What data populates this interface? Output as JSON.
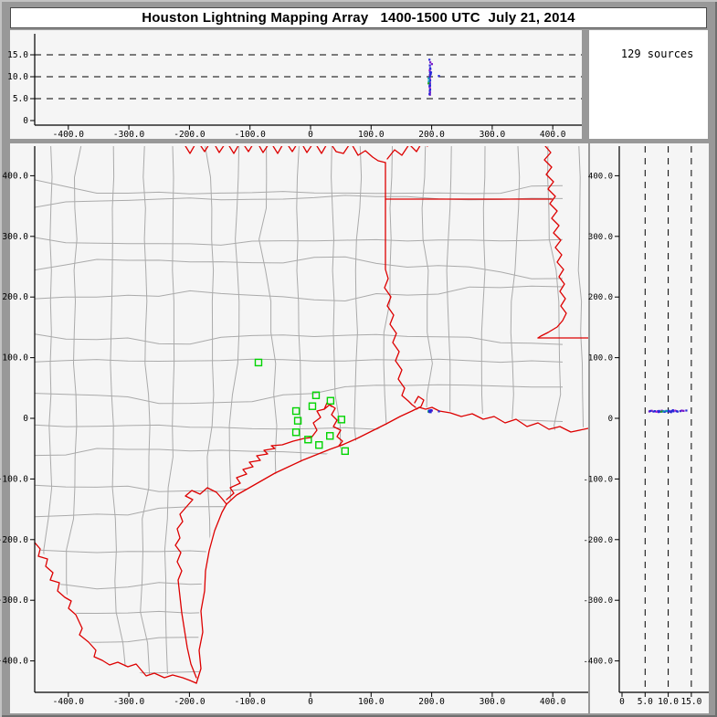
{
  "window": {
    "title": "Houston Lightning Mapping Array   1400-1500 UTC  July 21, 2014"
  },
  "sources_panel": {
    "label": "129 sources"
  },
  "colors": {
    "state_border_red": "#dd0000",
    "county_gray": "#aaaaaa",
    "station_green": "#00d400",
    "panel_bg": "#f5f5f5",
    "frame_gray": "#989898",
    "dash_black": "#000000"
  },
  "chart_data": {
    "type": "scatter",
    "title": "Houston Lightning Mapping Array   1400-1500 UTC  July 21, 2014",
    "sources_count": 129,
    "panels": [
      {
        "id": "alt_vs_eastwest",
        "position": "top",
        "x_axis": "east_km",
        "y_axis": "alt_km",
        "gridlines": "horizontal dashed at 5,10,15 km"
      },
      {
        "id": "plan_view_map",
        "position": "main",
        "x_axis": "east_km",
        "y_axis": "north_km",
        "gridlines": "none"
      },
      {
        "id": "northsouth_vs_alt",
        "position": "right",
        "x_axis": "alt_km",
        "y_axis": "north_km",
        "gridlines": "vertical dashed at 5,10,15 km"
      }
    ],
    "axes": {
      "east_km": {
        "ticks": [
          -400,
          -300,
          -200,
          -100,
          0,
          100,
          200,
          300,
          400
        ],
        "tick_labels": [
          "-400.0",
          "-300.0",
          "-200.0",
          "-100.0",
          "0",
          "100.0",
          "200.0",
          "300.0",
          "400.0"
        ],
        "range": [
          -455,
          459
        ]
      },
      "north_km": {
        "ticks": [
          400,
          300,
          200,
          100,
          0,
          -100,
          -200,
          -300,
          -400
        ],
        "tick_labels": [
          "400.0",
          "300.0",
          "200.0",
          "100.0",
          "0",
          "-100.0",
          "-200.0",
          "-300.0",
          "-400.0"
        ],
        "range": [
          448,
          -452
        ]
      },
      "alt_km": {
        "ticks": [
          0,
          5,
          10,
          15
        ],
        "tick_labels": [
          "0",
          "5.0",
          "10.0",
          "15.0"
        ],
        "range": [
          0,
          20
        ],
        "gridlines": [
          5,
          10,
          15
        ]
      }
    },
    "stations_east_north_km": [
      [
        -86,
        92
      ],
      [
        9,
        38
      ],
      [
        33,
        29
      ],
      [
        3,
        20
      ],
      [
        -24,
        12
      ],
      [
        -21,
        -4
      ],
      [
        51,
        -2
      ],
      [
        -24,
        -23
      ],
      [
        32,
        -29
      ],
      [
        -4,
        -35
      ],
      [
        14,
        -44
      ],
      [
        57,
        -54
      ]
    ],
    "sources_east_north_alt_color": [
      [
        197.6,
        12.4,
        13.3,
        "#7a18c8"
      ],
      [
        196.9,
        12.0,
        12.6,
        "#2828d8"
      ],
      [
        197.3,
        11.2,
        12.0,
        "#2828d8"
      ],
      [
        196.6,
        12.8,
        11.5,
        "#b81fc8"
      ],
      [
        197.1,
        11.6,
        11.1,
        "#2828d8"
      ],
      [
        197.5,
        12.2,
        10.7,
        "#2828d8"
      ],
      [
        196.8,
        11.0,
        10.4,
        "#7a18c8"
      ],
      [
        197.2,
        12.5,
        10.1,
        "#2828d8"
      ],
      [
        196.5,
        11.8,
        9.8,
        "#2828d8"
      ],
      [
        197.0,
        12.1,
        9.5,
        "#b81fc8"
      ],
      [
        197.4,
        10.8,
        9.2,
        "#2828d8"
      ],
      [
        196.7,
        11.4,
        8.9,
        "#2828d8"
      ],
      [
        197.1,
        12.7,
        8.6,
        "#7a18c8"
      ],
      [
        196.9,
        11.1,
        8.3,
        "#2828d8"
      ],
      [
        197.3,
        12.3,
        8.0,
        "#2828d8"
      ],
      [
        196.6,
        11.7,
        7.7,
        "#2828d8"
      ],
      [
        197.0,
        10.9,
        7.4,
        "#b81fc8"
      ],
      [
        197.4,
        12.0,
        7.1,
        "#2828d8"
      ],
      [
        196.8,
        11.3,
        6.8,
        "#2828d8"
      ],
      [
        197.2,
        12.6,
        6.4,
        "#7a18c8"
      ],
      [
        197.0,
        11.5,
        5.9,
        "#7a18c8"
      ],
      [
        200.3,
        12.9,
        12.9,
        "#7a18c8"
      ],
      [
        195.2,
        11.9,
        9.0,
        "#00a0b0"
      ],
      [
        194.7,
        11.2,
        8.5,
        "#20a020"
      ],
      [
        195.0,
        12.4,
        9.6,
        "#00a0b0"
      ],
      [
        211.8,
        11.6,
        10.2,
        "#2828d8"
      ],
      [
        198.9,
        13.6,
        11.0,
        "#2828d8"
      ],
      [
        198.3,
        10.3,
        10.6,
        "#2828d8"
      ],
      [
        196.2,
        13.0,
        13.9,
        "#2828d8"
      ],
      [
        196.4,
        10.5,
        7.9,
        "#2828d8"
      ],
      [
        197.8,
        11.9,
        11.8,
        "#2828d8"
      ],
      [
        196.3,
        12.2,
        6.1,
        "#2828d8"
      ]
    ]
  }
}
